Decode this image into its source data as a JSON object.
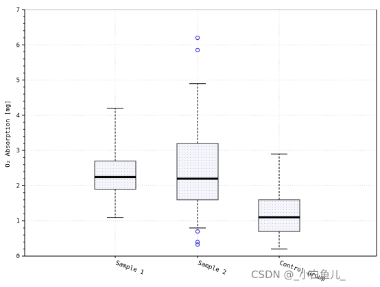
{
  "chart_data": {
    "type": "boxplot",
    "ylabel": "O₂ Absorption [mg]",
    "ylim": [
      0,
      7
    ],
    "yticks": [
      "0",
      "1",
      "2",
      "3",
      "4",
      "5",
      "6",
      "7"
    ],
    "grid": true,
    "categories": [
      "Sample 1",
      "Sample 2",
      "Control Group"
    ],
    "boxes": [
      {
        "label": "Sample 1",
        "whisker_low": 1.1,
        "q1": 1.9,
        "median": 2.25,
        "q3": 2.7,
        "whisker_high": 4.2,
        "outliers": []
      },
      {
        "label": "Sample 2",
        "whisker_low": 0.8,
        "q1": 1.6,
        "median": 2.2,
        "q3": 3.2,
        "whisker_high": 4.9,
        "outliers": [
          6.2,
          5.85,
          0.7,
          0.4,
          0.33
        ]
      },
      {
        "label": "Control Group",
        "whisker_low": 0.2,
        "q1": 0.7,
        "median": 1.1,
        "q3": 1.6,
        "whisker_high": 2.9,
        "outliers": []
      }
    ],
    "colors": {
      "box_fill": "#f3f3fb",
      "outlier": "#3a3adf",
      "grid": "#d9d9d9",
      "line": "#000000"
    }
  },
  "watermark": "CSDN @_小白鱼儿_"
}
